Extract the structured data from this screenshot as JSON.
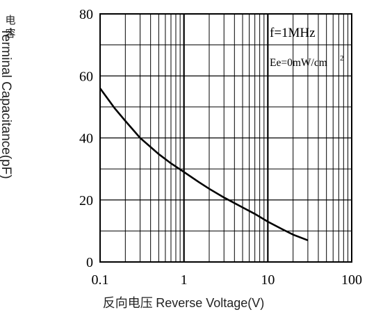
{
  "chart_data": {
    "type": "line",
    "xscale": "log",
    "xlim": [
      0.1,
      100
    ],
    "ylim": [
      0,
      80
    ],
    "x_ticks": [
      "0.1",
      "1",
      "10",
      "100"
    ],
    "y_ticks": [
      "0",
      "20",
      "40",
      "60",
      "80"
    ],
    "ylabel_cn": "电容",
    "ylabel": "Terminal Capacitance(pF)",
    "xlabel_cn": "反向电压",
    "xlabel": "Reverse Voltage(V)",
    "annotations": [
      "f=1MHz",
      "Ee=0mW/cm",
      "2"
    ],
    "grid": true,
    "series": [
      {
        "x": [
          0.1,
          0.15,
          0.2,
          0.3,
          0.5,
          0.7,
          1,
          1.5,
          2,
          3,
          5,
          7,
          10,
          15,
          20,
          30
        ],
        "y": [
          56,
          49.5,
          45.5,
          40,
          34.8,
          31.8,
          29,
          25.8,
          23.6,
          20.8,
          17.6,
          15.5,
          13,
          10.5,
          8.8,
          7
        ]
      }
    ]
  }
}
